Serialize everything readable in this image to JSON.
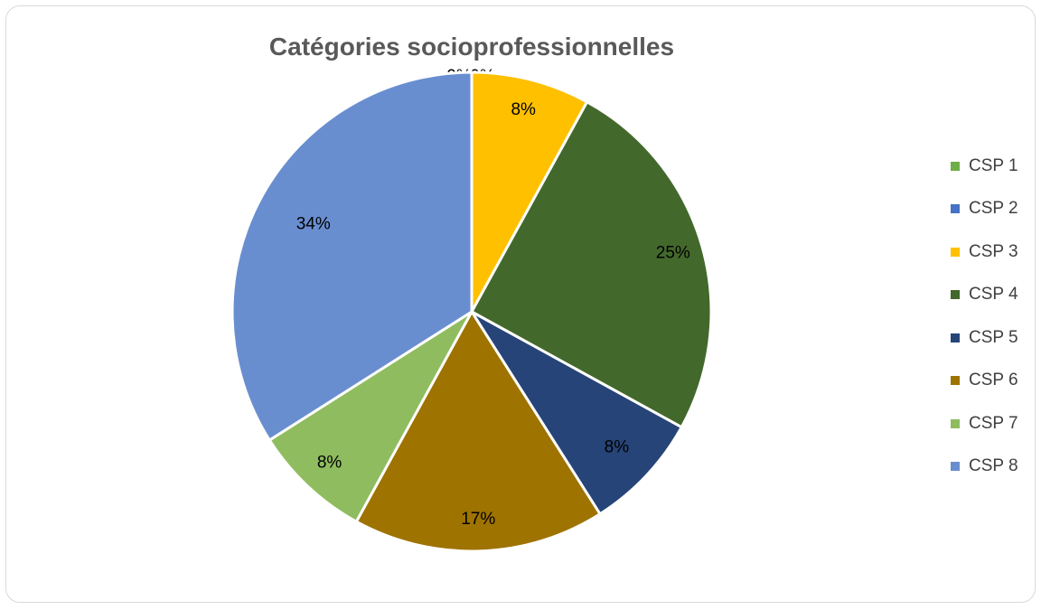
{
  "chart_data": {
    "type": "pie",
    "title": "Catégories socioprofessionnelles",
    "categories": [
      "CSP 1",
      "CSP 2",
      "CSP 3",
      "CSP 4",
      "CSP 5",
      "CSP 6",
      "CSP 7",
      "CSP 8"
    ],
    "values": [
      0,
      0,
      8,
      25,
      8,
      17,
      8,
      34
    ],
    "data_labels": [
      "0%",
      "0%",
      "8%",
      "25%",
      "8%",
      "17%",
      "8%",
      "34%"
    ],
    "colors": [
      "#70ad47",
      "#4472c4",
      "#ffc000",
      "#43682b",
      "#264478",
      "#9e7300",
      "#8fbc5f",
      "#698ed0"
    ],
    "legend_position": "right"
  }
}
